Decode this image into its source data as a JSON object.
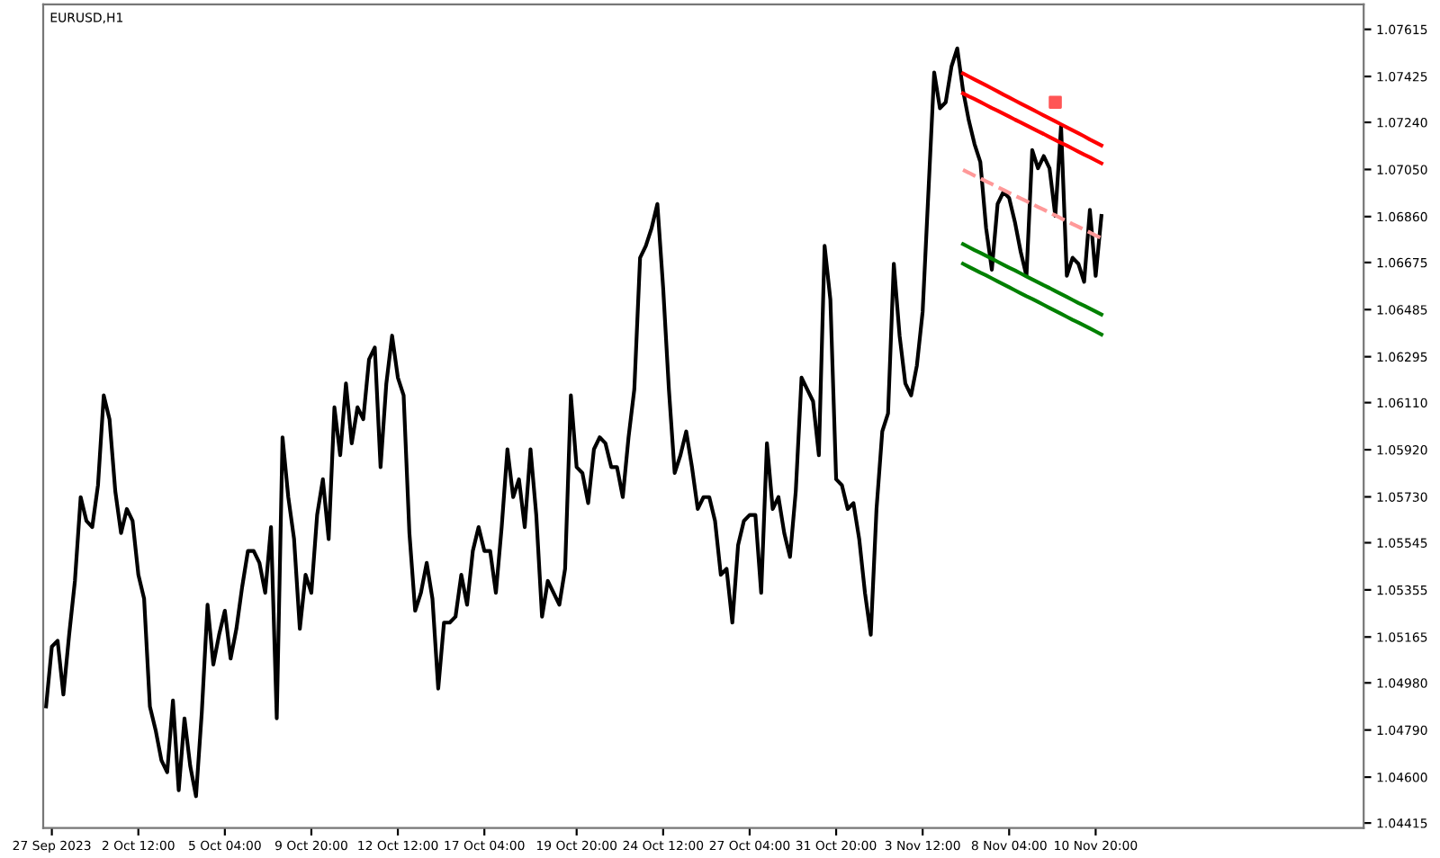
{
  "chart_data": {
    "type": "line",
    "title": "EURUSD,H1",
    "grid": false,
    "ylim": [
      1.04395,
      1.07716
    ],
    "categories": [
      null,
      "27 Sep 2023",
      null,
      null,
      null,
      null,
      null,
      null,
      null,
      null,
      null,
      null,
      null,
      null,
      null,
      null,
      "2 Oct 12:00",
      null,
      null,
      null,
      null,
      null,
      null,
      null,
      null,
      null,
      null,
      null,
      null,
      null,
      null,
      "5 Oct 04:00",
      null,
      null,
      null,
      null,
      null,
      null,
      null,
      null,
      null,
      null,
      null,
      null,
      null,
      null,
      "9 Oct 20:00",
      null,
      null,
      null,
      null,
      null,
      null,
      null,
      null,
      null,
      null,
      null,
      null,
      null,
      null,
      "12 Oct 12:00",
      null,
      null,
      null,
      null,
      null,
      null,
      null,
      null,
      null,
      null,
      null,
      null,
      null,
      null,
      "17 Oct 04:00",
      null,
      null,
      null,
      null,
      null,
      null,
      null,
      null,
      null,
      null,
      null,
      null,
      null,
      null,
      null,
      "19 Oct 20:00",
      null,
      null,
      null,
      null,
      null,
      null,
      null,
      null,
      null,
      null,
      null,
      null,
      null,
      null,
      "24 Oct 12:00",
      null,
      null,
      null,
      null,
      null,
      null,
      null,
      null,
      null,
      null,
      null,
      null,
      null,
      null,
      "27 Oct 04:00",
      null,
      null,
      null,
      null,
      null,
      null,
      null,
      null,
      null,
      null,
      null,
      null,
      null,
      null,
      "31 Oct 20:00",
      null,
      null,
      null,
      null,
      null,
      null,
      null,
      null,
      null,
      null,
      null,
      null,
      null,
      null,
      "3 Nov 12:00",
      null,
      null,
      null,
      null,
      null,
      null,
      null,
      null,
      null,
      null,
      null,
      null,
      null,
      null,
      "8 Nov 04:00",
      null,
      null,
      null,
      null,
      null,
      null,
      null,
      null,
      null,
      null,
      null,
      null,
      null,
      null,
      "10 Nov 20:00",
      null
    ],
    "yticks": [
      1.07615,
      1.07425,
      {
        "value": 1.0724,
        "label": "1.07240"
      },
      {
        "value": 1.0705,
        "label": "1.07050"
      },
      {
        "value": 1.0686,
        "label": "1.06860"
      },
      1.06675,
      1.06485,
      1.06295,
      {
        "value": 1.0611,
        "label": "1.06110"
      },
      {
        "value": 1.0592,
        "label": "1.05920"
      },
      {
        "value": 1.0573,
        "label": "1.05730"
      },
      1.05545,
      1.05355,
      1.05165,
      {
        "value": 1.0498,
        "label": "1.04980"
      },
      {
        "value": 1.0479,
        "label": "1.04790"
      },
      {
        "value": 1.046,
        "label": "1.04600"
      },
      1.04415
    ],
    "series": [
      {
        "color": "#000000",
        "line_style": "solid",
        "values": [
          1.04885,
          1.05126,
          1.0515,
          1.04933,
          1.05174,
          1.05391,
          1.05729,
          1.05633,
          1.05608,
          1.05777,
          1.06139,
          1.06043,
          1.05753,
          1.05584,
          1.05681,
          1.05633,
          1.05416,
          1.05319,
          1.04885,
          1.04789,
          1.04668,
          1.0462,
          1.04909,
          1.04547,
          1.04837,
          1.04644,
          1.04523,
          1.04861,
          1.05295,
          1.05054,
          1.05174,
          1.05271,
          1.05078,
          1.05198,
          1.05367,
          1.05512,
          1.05512,
          1.05464,
          1.05343,
          1.05608,
          1.04837,
          1.0597,
          1.05729,
          1.0556,
          1.05198,
          1.05416,
          1.05343,
          1.05657,
          1.05801,
          1.0556,
          1.06091,
          1.05898,
          1.06187,
          1.05946,
          1.06091,
          1.06043,
          1.06284,
          1.06332,
          1.0585,
          1.06187,
          1.0638,
          1.06211,
          1.06139,
          1.05584,
          1.05271,
          1.05343,
          1.05464,
          1.05319,
          1.04957,
          1.05223,
          1.05223,
          1.05247,
          1.05416,
          1.05295,
          1.05512,
          1.05608,
          1.05512,
          1.05512,
          1.05343,
          1.05608,
          1.05922,
          1.05729,
          1.05801,
          1.05608,
          1.05922,
          1.05657,
          1.05247,
          1.05391,
          1.05343,
          1.05295,
          1.0544,
          1.06139,
          1.0585,
          1.05826,
          1.05705,
          1.05922,
          1.0597,
          1.05946,
          1.0585,
          1.0585,
          1.05729,
          1.0597,
          1.06163,
          1.06694,
          1.06742,
          1.06814,
          1.06911,
          1.06573,
          1.06163,
          1.05826,
          1.05898,
          1.05994,
          1.0585,
          1.05681,
          1.05729,
          1.05729,
          1.05633,
          1.05416,
          1.0544,
          1.05223,
          1.05536,
          1.05633,
          1.05657,
          1.05657,
          1.05343,
          1.05946,
          1.05681,
          1.05729,
          1.05584,
          1.05488,
          1.05753,
          1.06211,
          1.06163,
          1.06115,
          1.05898,
          1.06742,
          1.06525,
          1.05801,
          1.05777,
          1.05681,
          1.05705,
          1.0556,
          1.05343,
          1.05174,
          1.05681,
          1.05994,
          1.06067,
          1.0667,
          1.0638,
          1.06187,
          1.06139,
          1.0626,
          1.06477,
          1.06959,
          1.07441,
          1.07297,
          1.07321,
          1.07465,
          1.07538,
          1.07369,
          1.07248,
          1.07152,
          1.0708,
          1.06814,
          1.06646,
          1.06911,
          1.06959,
          1.06935,
          1.06838,
          1.06718,
          1.06621,
          1.07128,
          1.07055,
          1.07104,
          1.07055,
          1.06863,
          1.07224,
          1.06621,
          1.06694,
          1.0667,
          1.06597,
          1.06887,
          1.06621,
          1.06863
        ]
      },
      {
        "color": "#ff0000",
        "line_style": "solid",
        "values": [
          null,
          null,
          null,
          null,
          null,
          null,
          null,
          null,
          null,
          null,
          null,
          null,
          null,
          null,
          null,
          null,
          null,
          null,
          null,
          null,
          null,
          null,
          null,
          null,
          null,
          null,
          null,
          null,
          null,
          null,
          null,
          null,
          null,
          null,
          null,
          null,
          null,
          null,
          null,
          null,
          null,
          null,
          null,
          null,
          null,
          null,
          null,
          null,
          null,
          null,
          null,
          null,
          null,
          null,
          null,
          null,
          null,
          null,
          null,
          null,
          null,
          null,
          null,
          null,
          null,
          null,
          null,
          null,
          null,
          null,
          null,
          null,
          null,
          null,
          null,
          null,
          null,
          null,
          null,
          null,
          null,
          null,
          null,
          null,
          null,
          null,
          null,
          null,
          null,
          null,
          null,
          null,
          null,
          null,
          null,
          null,
          null,
          null,
          null,
          null,
          null,
          null,
          null,
          null,
          null,
          null,
          null,
          null,
          null,
          null,
          null,
          null,
          null,
          null,
          null,
          null,
          null,
          null,
          null,
          null,
          null,
          null,
          null,
          null,
          null,
          null,
          null,
          null,
          null,
          null,
          null,
          null,
          null,
          null,
          null,
          null,
          null,
          null,
          null,
          null,
          null,
          null,
          null,
          null,
          null,
          null,
          null,
          null,
          null,
          null,
          null,
          null,
          null,
          null,
          null,
          null,
          null,
          null,
          null,
          1.07437,
          1.07425,
          1.07413,
          1.07401,
          1.07389,
          1.07377,
          1.07365,
          1.07352,
          1.0734,
          1.07328,
          1.07316,
          1.07304,
          1.07292,
          1.0728,
          1.07268,
          1.07256,
          1.07244,
          1.07232,
          1.0722,
          1.07208,
          1.07196,
          1.07184,
          1.07171,
          1.07159,
          1.07147
        ]
      },
      {
        "color": "#ff0000",
        "line_style": "solid",
        "values": [
          null,
          null,
          null,
          null,
          null,
          null,
          null,
          null,
          null,
          null,
          null,
          null,
          null,
          null,
          null,
          null,
          null,
          null,
          null,
          null,
          null,
          null,
          null,
          null,
          null,
          null,
          null,
          null,
          null,
          null,
          null,
          null,
          null,
          null,
          null,
          null,
          null,
          null,
          null,
          null,
          null,
          null,
          null,
          null,
          null,
          null,
          null,
          null,
          null,
          null,
          null,
          null,
          null,
          null,
          null,
          null,
          null,
          null,
          null,
          null,
          null,
          null,
          null,
          null,
          null,
          null,
          null,
          null,
          null,
          null,
          null,
          null,
          null,
          null,
          null,
          null,
          null,
          null,
          null,
          null,
          null,
          null,
          null,
          null,
          null,
          null,
          null,
          null,
          null,
          null,
          null,
          null,
          null,
          null,
          null,
          null,
          null,
          null,
          null,
          null,
          null,
          null,
          null,
          null,
          null,
          null,
          null,
          null,
          null,
          null,
          null,
          null,
          null,
          null,
          null,
          null,
          null,
          null,
          null,
          null,
          null,
          null,
          null,
          null,
          null,
          null,
          null,
          null,
          null,
          null,
          null,
          null,
          null,
          null,
          null,
          null,
          null,
          null,
          null,
          null,
          null,
          null,
          null,
          null,
          null,
          null,
          null,
          null,
          null,
          null,
          null,
          null,
          null,
          null,
          null,
          null,
          null,
          null,
          null,
          1.07357,
          1.07345,
          1.07334,
          1.07322,
          1.0731,
          1.07298,
          1.07287,
          1.07275,
          1.07263,
          1.07251,
          1.0724,
          1.07228,
          1.07216,
          1.07204,
          1.07193,
          1.07181,
          1.07169,
          1.07157,
          1.07146,
          1.07134,
          1.07122,
          1.0711,
          1.07099,
          1.07087,
          1.07075
        ]
      },
      {
        "color": "#ff9999",
        "line_style": "dashed",
        "values": [
          null,
          null,
          null,
          null,
          null,
          null,
          null,
          null,
          null,
          null,
          null,
          null,
          null,
          null,
          null,
          null,
          null,
          null,
          null,
          null,
          null,
          null,
          null,
          null,
          null,
          null,
          null,
          null,
          null,
          null,
          null,
          null,
          null,
          null,
          null,
          null,
          null,
          null,
          null,
          null,
          null,
          null,
          null,
          null,
          null,
          null,
          null,
          null,
          null,
          null,
          null,
          null,
          null,
          null,
          null,
          null,
          null,
          null,
          null,
          null,
          null,
          null,
          null,
          null,
          null,
          null,
          null,
          null,
          null,
          null,
          null,
          null,
          null,
          null,
          null,
          null,
          null,
          null,
          null,
          null,
          null,
          null,
          null,
          null,
          null,
          null,
          null,
          null,
          null,
          null,
          null,
          null,
          null,
          null,
          null,
          null,
          null,
          null,
          null,
          null,
          null,
          null,
          null,
          null,
          null,
          null,
          null,
          null,
          null,
          null,
          null,
          null,
          null,
          null,
          null,
          null,
          null,
          null,
          null,
          null,
          null,
          null,
          null,
          null,
          null,
          null,
          null,
          null,
          null,
          null,
          null,
          null,
          null,
          null,
          null,
          null,
          null,
          null,
          null,
          null,
          null,
          null,
          null,
          null,
          null,
          null,
          null,
          null,
          null,
          null,
          null,
          null,
          null,
          null,
          null,
          null,
          null,
          null,
          null,
          1.07048,
          1.07037,
          1.07025,
          1.07014,
          1.07002,
          1.06991,
          1.06979,
          1.06968,
          1.06956,
          1.06945,
          1.06933,
          1.06922,
          1.06911,
          1.06899,
          1.06888,
          1.06876,
          1.06865,
          1.06853,
          1.06842,
          1.0683,
          1.06819,
          1.06807,
          1.06796,
          1.06784,
          1.06773
        ]
      },
      {
        "color": "#008000",
        "line_style": "solid",
        "values": [
          null,
          null,
          null,
          null,
          null,
          null,
          null,
          null,
          null,
          null,
          null,
          null,
          null,
          null,
          null,
          null,
          null,
          null,
          null,
          null,
          null,
          null,
          null,
          null,
          null,
          null,
          null,
          null,
          null,
          null,
          null,
          null,
          null,
          null,
          null,
          null,
          null,
          null,
          null,
          null,
          null,
          null,
          null,
          null,
          null,
          null,
          null,
          null,
          null,
          null,
          null,
          null,
          null,
          null,
          null,
          null,
          null,
          null,
          null,
          null,
          null,
          null,
          null,
          null,
          null,
          null,
          null,
          null,
          null,
          null,
          null,
          null,
          null,
          null,
          null,
          null,
          null,
          null,
          null,
          null,
          null,
          null,
          null,
          null,
          null,
          null,
          null,
          null,
          null,
          null,
          null,
          null,
          null,
          null,
          null,
          null,
          null,
          null,
          null,
          null,
          null,
          null,
          null,
          null,
          null,
          null,
          null,
          null,
          null,
          null,
          null,
          null,
          null,
          null,
          null,
          null,
          null,
          null,
          null,
          null,
          null,
          null,
          null,
          null,
          null,
          null,
          null,
          null,
          null,
          null,
          null,
          null,
          null,
          null,
          null,
          null,
          null,
          null,
          null,
          null,
          null,
          null,
          null,
          null,
          null,
          null,
          null,
          null,
          null,
          null,
          null,
          null,
          null,
          null,
          null,
          null,
          null,
          null,
          null,
          1.06749,
          1.06737,
          1.06725,
          1.06714,
          1.06702,
          1.0669,
          1.06678,
          1.06666,
          1.06654,
          1.06643,
          1.06631,
          1.06619,
          1.06607,
          1.06595,
          1.06583,
          1.06572,
          1.0656,
          1.06548,
          1.06536,
          1.06524,
          1.06512,
          1.06501,
          1.06489,
          1.06477,
          1.06465
        ]
      },
      {
        "color": "#008000",
        "line_style": "solid",
        "values": [
          null,
          null,
          null,
          null,
          null,
          null,
          null,
          null,
          null,
          null,
          null,
          null,
          null,
          null,
          null,
          null,
          null,
          null,
          null,
          null,
          null,
          null,
          null,
          null,
          null,
          null,
          null,
          null,
          null,
          null,
          null,
          null,
          null,
          null,
          null,
          null,
          null,
          null,
          null,
          null,
          null,
          null,
          null,
          null,
          null,
          null,
          null,
          null,
          null,
          null,
          null,
          null,
          null,
          null,
          null,
          null,
          null,
          null,
          null,
          null,
          null,
          null,
          null,
          null,
          null,
          null,
          null,
          null,
          null,
          null,
          null,
          null,
          null,
          null,
          null,
          null,
          null,
          null,
          null,
          null,
          null,
          null,
          null,
          null,
          null,
          null,
          null,
          null,
          null,
          null,
          null,
          null,
          null,
          null,
          null,
          null,
          null,
          null,
          null,
          null,
          null,
          null,
          null,
          null,
          null,
          null,
          null,
          null,
          null,
          null,
          null,
          null,
          null,
          null,
          null,
          null,
          null,
          null,
          null,
          null,
          null,
          null,
          null,
          null,
          null,
          null,
          null,
          null,
          null,
          null,
          null,
          null,
          null,
          null,
          null,
          null,
          null,
          null,
          null,
          null,
          null,
          null,
          null,
          null,
          null,
          null,
          null,
          null,
          null,
          null,
          null,
          null,
          null,
          null,
          null,
          null,
          null,
          null,
          null,
          1.0667,
          1.06658,
          1.06646,
          1.06634,
          1.06623,
          1.06611,
          1.06599,
          1.06587,
          1.06575,
          1.06563,
          1.06551,
          1.06539,
          1.06528,
          1.06516,
          1.06504,
          1.06492,
          1.0648,
          1.06468,
          1.06456,
          1.06444,
          1.06433,
          1.06421,
          1.06409,
          1.06397,
          1.06385
        ]
      },
      {
        "type": "scatter",
        "color": "#ff5555",
        "marker": "square",
        "values": [
          null,
          null,
          null,
          null,
          null,
          null,
          null,
          null,
          null,
          null,
          null,
          null,
          null,
          null,
          null,
          null,
          null,
          null,
          null,
          null,
          null,
          null,
          null,
          null,
          null,
          null,
          null,
          null,
          null,
          null,
          null,
          null,
          null,
          null,
          null,
          null,
          null,
          null,
          null,
          null,
          null,
          null,
          null,
          null,
          null,
          null,
          null,
          null,
          null,
          null,
          null,
          null,
          null,
          null,
          null,
          null,
          null,
          null,
          null,
          null,
          null,
          null,
          null,
          null,
          null,
          null,
          null,
          null,
          null,
          null,
          null,
          null,
          null,
          null,
          null,
          null,
          null,
          null,
          null,
          null,
          null,
          null,
          null,
          null,
          null,
          null,
          null,
          null,
          null,
          null,
          null,
          null,
          null,
          null,
          null,
          null,
          null,
          null,
          null,
          null,
          null,
          null,
          null,
          null,
          null,
          null,
          null,
          null,
          null,
          null,
          null,
          null,
          null,
          null,
          null,
          null,
          null,
          null,
          null,
          null,
          null,
          null,
          null,
          null,
          null,
          null,
          null,
          null,
          null,
          null,
          null,
          null,
          null,
          null,
          null,
          null,
          null,
          null,
          null,
          null,
          null,
          null,
          null,
          null,
          null,
          null,
          null,
          null,
          null,
          null,
          null,
          null,
          null,
          null,
          null,
          null,
          null,
          null,
          null,
          null,
          null,
          null,
          null,
          null,
          null,
          null,
          null,
          null,
          null,
          null,
          null,
          null,
          null,
          null,
          null,
          1.07321,
          null,
          null,
          null,
          null,
          null,
          null,
          null,
          null
        ]
      }
    ]
  }
}
